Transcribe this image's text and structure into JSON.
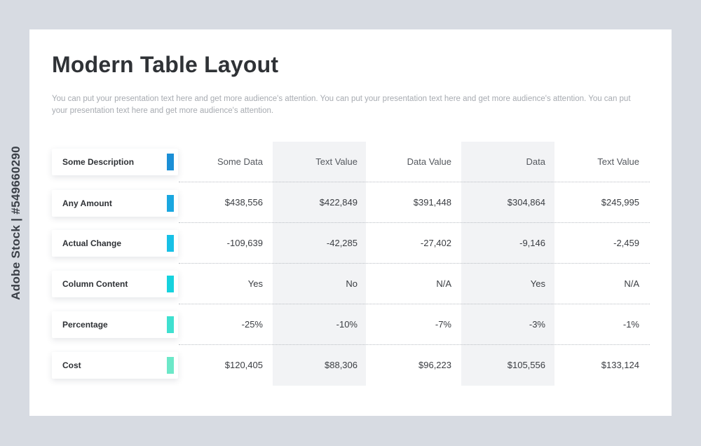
{
  "watermark": "Adobe Stock | #549660290",
  "title": "Modern Table Layout",
  "subtitle": "You can put your presentation text here and get more audience's attention. You can put your presentation text here and get more audience's attention. You can put your presentation text here and get more audience's attention.",
  "columns": [
    "Some Data",
    "Text Value",
    "Data Value",
    "Data",
    "Text Value"
  ],
  "header_label": "Some Description",
  "rows": [
    {
      "label": "Any Amount",
      "values": [
        "$438,556",
        "$422,849",
        "$391,448",
        "$304,864",
        "$245,995"
      ]
    },
    {
      "label": "Actual Change",
      "values": [
        "-109,639",
        "-42,285",
        "-27,402",
        "-9,146",
        "-2,459"
      ]
    },
    {
      "label": "Column Content",
      "values": [
        "Yes",
        "No",
        "N/A",
        "Yes",
        "N/A"
      ]
    },
    {
      "label": "Percentage",
      "values": [
        "-25%",
        "-10%",
        "-7%",
        "-3%",
        "-1%"
      ]
    },
    {
      "label": "Cost",
      "values": [
        "$120,405",
        "$88,306",
        "$96,223",
        "$105,556",
        "$133,124"
      ]
    }
  ],
  "accent_colors": [
    "#1b8fd6",
    "#1aa7e0",
    "#17c0e6",
    "#16d2de",
    "#3fe0d0",
    "#6ce8c8"
  ],
  "shade_color": "#f2f3f5"
}
